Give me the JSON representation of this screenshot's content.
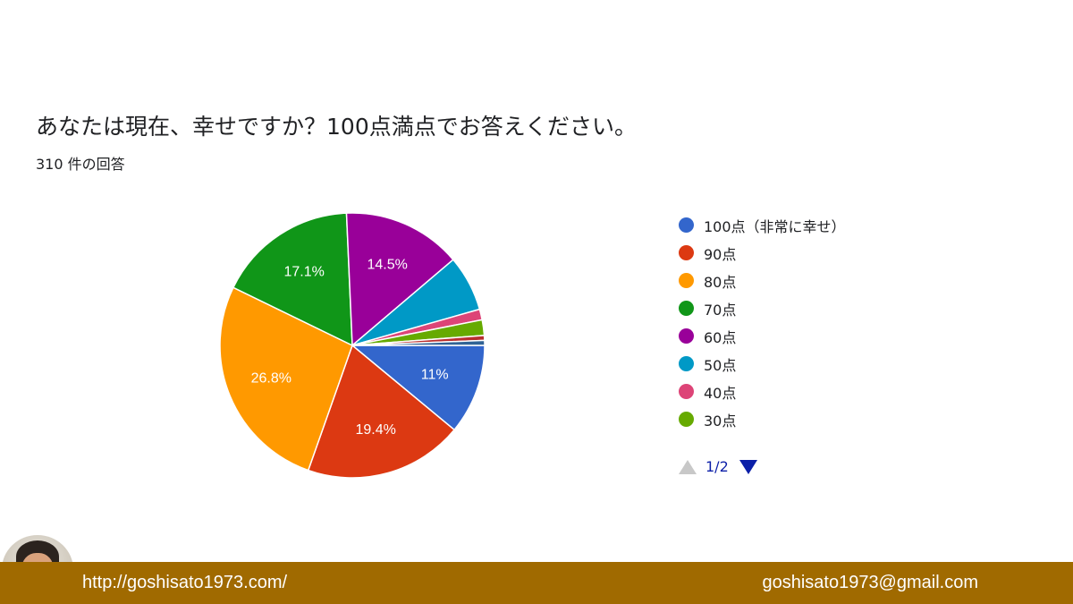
{
  "title": "あなたは現在、幸せですか？100点満点でお答えください。",
  "subtitle": "310 件の回答",
  "chart_data": {
    "type": "pie",
    "title": "あなたは現在、幸せですか？100点満点でお答えください。",
    "total_responses_label": "310 件の回答",
    "start_angle_deg": 0,
    "direction": "clockwise",
    "slices": [
      {
        "label": "100点（非常に幸せ）",
        "value": 11.0,
        "display": "11%",
        "color": "#3366cc"
      },
      {
        "label": "90点",
        "value": 19.4,
        "display": "19.4%",
        "color": "#dc3912"
      },
      {
        "label": "80点",
        "value": 26.8,
        "display": "26.8%",
        "color": "#ff9900"
      },
      {
        "label": "70点",
        "value": 17.1,
        "display": "17.1%",
        "color": "#109618"
      },
      {
        "label": "60点",
        "value": 14.5,
        "display": "14.5%",
        "color": "#990099"
      },
      {
        "label": "50点",
        "value": 6.8,
        "display": "",
        "color": "#0099c6"
      },
      {
        "label": "40点",
        "value": 1.3,
        "display": "",
        "color": "#dd4477"
      },
      {
        "label": "30点",
        "value": 1.9,
        "display": "",
        "color": "#66aa00"
      },
      {
        "label": "",
        "value": 0.6,
        "display": "",
        "color": "#b82e2e"
      },
      {
        "label": "",
        "value": 0.6,
        "display": "",
        "color": "#316395"
      }
    ],
    "legend_position": "right",
    "legend_page": "1/2"
  },
  "legend": {
    "items": [
      {
        "label": "100点（非常に幸せ）",
        "color": "#3366cc"
      },
      {
        "label": "90点",
        "color": "#dc3912"
      },
      {
        "label": "80点",
        "color": "#ff9900"
      },
      {
        "label": "70点",
        "color": "#109618"
      },
      {
        "label": "60点",
        "color": "#990099"
      },
      {
        "label": "50点",
        "color": "#0099c6"
      },
      {
        "label": "40点",
        "color": "#dd4477"
      },
      {
        "label": "30点",
        "color": "#66aa00"
      }
    ],
    "page": "1/2"
  },
  "footer": {
    "url": "http://goshisato1973.com/",
    "email": "goshisato1973@gmail.com",
    "background": "#a06a00"
  }
}
